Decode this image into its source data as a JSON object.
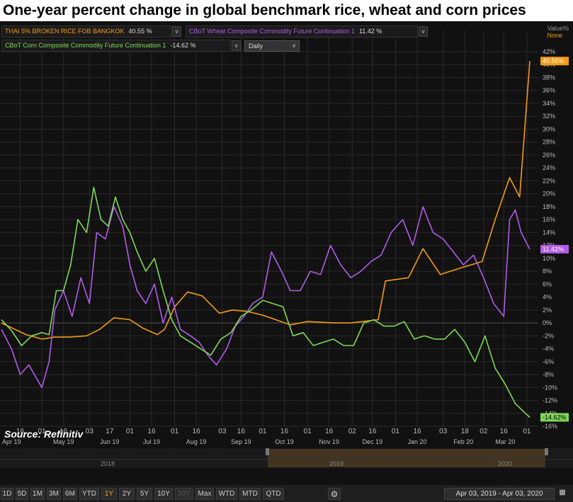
{
  "title": "One-year percent change in global benchmark rice, wheat and corn prices",
  "source": "Source: Refinitiv",
  "legend": {
    "rice": {
      "label": "THAI 5% BROKEN RICE FOB BANGKOK",
      "value": "40.55 %"
    },
    "wheat": {
      "label": "CBoT Wheat Composite Commodity Future Continuation 1",
      "value": "11.42 %"
    },
    "corn": {
      "label": "CBoT Corn Composite Commodity Future Continuation 1",
      "value": "-14.62 %"
    },
    "dropdown_glyph": "∨",
    "interval": "Daily"
  },
  "value_axis": {
    "label": "Value%",
    "mode": "None"
  },
  "colors": {
    "rice": "#f39c12",
    "wheat": "#b25ce6",
    "corn": "#7ed957",
    "grid": "#2a2a2a",
    "zero": "#555555"
  },
  "range_buttons": [
    "1D",
    "5D",
    "1M",
    "3M",
    "6M",
    "YTD",
    "1Y",
    "2Y",
    "5Y",
    "10Y",
    "20Y",
    "Max",
    "WTD",
    "MTD",
    "QTD"
  ],
  "active_range": "1Y",
  "disabled_range": "20Y",
  "date_range": "Apr 03, 2019  -  Apr 03, 2020",
  "icons": {
    "settings": "gear-icon",
    "calendar": "calendar-icon"
  },
  "chart_data": {
    "type": "line",
    "title": "One-year percent change in global benchmark rice, wheat and corn prices",
    "ylabel": "Value%",
    "ylim": [
      -16,
      42
    ],
    "y_ticks": [
      "42%",
      "40%",
      "38%",
      "36%",
      "34%",
      "32%",
      "30%",
      "28%",
      "26%",
      "24%",
      "22%",
      "20%",
      "18%",
      "16%",
      "14%",
      "12%",
      "10%",
      "8%",
      "6%",
      "4%",
      "2%",
      "0%",
      "-2%",
      "-4%",
      "-6%",
      "-8%",
      "-10%",
      "-12%",
      "-14%",
      "-16%"
    ],
    "x_day_ticks": [
      "16",
      "01",
      "16",
      "03",
      "17",
      "01",
      "16",
      "01",
      "16",
      "03",
      "16",
      "01",
      "16",
      "01",
      "16",
      "02",
      "16",
      "01",
      "16",
      "03",
      "18",
      "02",
      "16",
      "01"
    ],
    "x_month_ticks": [
      "Apr 19",
      "May 19",
      "Jun 19",
      "Jul 19",
      "Aug 19",
      "Sep 19",
      "Oct 19",
      "Nov 19",
      "Dec 19",
      "Jan 20",
      "Feb 20",
      "Mar 20"
    ],
    "year_ticks": [
      "2018",
      "2019",
      "2020"
    ],
    "grid": true,
    "legend_position": "top-left",
    "series": [
      {
        "name": "THAI 5% BROKEN RICE FOB BANGKOK",
        "color": "#f39c12",
        "last_label": "40.55%",
        "x": [
          "2019-04-03",
          "2019-04-20",
          "2019-05-01",
          "2019-05-10",
          "2019-05-20",
          "2019-06-01",
          "2019-06-10",
          "2019-06-20",
          "2019-07-01",
          "2019-07-10",
          "2019-07-20",
          "2019-07-25",
          "2019-08-01",
          "2019-08-10",
          "2019-08-20",
          "2019-09-01",
          "2019-09-10",
          "2019-09-20",
          "2019-10-01",
          "2019-10-10",
          "2019-10-20",
          "2019-11-01",
          "2019-11-20",
          "2019-12-01",
          "2019-12-20",
          "2019-12-25",
          "2020-01-10",
          "2020-01-20",
          "2020-02-01",
          "2020-02-15",
          "2020-03-01",
          "2020-03-10",
          "2020-03-20",
          "2020-03-27",
          "2020-04-03"
        ],
        "y": [
          0,
          -1.8,
          -2.5,
          -2.2,
          -2.2,
          -2,
          -1,
          0.8,
          0.5,
          -0.8,
          -1.8,
          -1,
          2.5,
          4.8,
          4.2,
          1.5,
          2,
          1.8,
          1.2,
          0.5,
          -0.3,
          0.2,
          0,
          0,
          0.5,
          6.5,
          7,
          11.5,
          7.5,
          8.5,
          9.5,
          16,
          22.5,
          19.5,
          40.55
        ]
      },
      {
        "name": "CBoT Wheat Composite Commodity Future Continuation 1",
        "color": "#b25ce6",
        "last_label": "11.42%",
        "x": [
          "2019-04-03",
          "2019-04-10",
          "2019-04-16",
          "2019-04-22",
          "2019-05-01",
          "2019-05-06",
          "2019-05-10",
          "2019-05-16",
          "2019-05-22",
          "2019-05-28",
          "2019-06-03",
          "2019-06-08",
          "2019-06-14",
          "2019-06-20",
          "2019-06-26",
          "2019-07-01",
          "2019-07-06",
          "2019-07-12",
          "2019-07-18",
          "2019-07-24",
          "2019-07-30",
          "2019-08-05",
          "2019-08-12",
          "2019-08-18",
          "2019-08-24",
          "2019-08-30",
          "2019-09-06",
          "2019-09-12",
          "2019-09-18",
          "2019-09-24",
          "2019-10-01",
          "2019-10-07",
          "2019-10-14",
          "2019-10-20",
          "2019-10-27",
          "2019-11-03",
          "2019-11-10",
          "2019-11-17",
          "2019-11-24",
          "2019-12-01",
          "2019-12-08",
          "2019-12-15",
          "2019-12-22",
          "2019-12-29",
          "2020-01-06",
          "2020-01-13",
          "2020-01-20",
          "2020-01-27",
          "2020-02-03",
          "2020-02-10",
          "2020-02-17",
          "2020-02-24",
          "2020-03-02",
          "2020-03-09",
          "2020-03-16",
          "2020-03-20",
          "2020-03-24",
          "2020-03-28",
          "2020-04-03"
        ],
        "y": [
          -1,
          -4,
          -8,
          -6.5,
          -10,
          -6,
          2,
          5,
          1,
          7,
          3,
          14,
          13,
          18,
          15,
          9,
          5,
          3,
          6,
          0,
          4,
          -1,
          -2,
          -3,
          -5,
          -6.5,
          -4,
          -0.5,
          1,
          3,
          4,
          11,
          8,
          5,
          5,
          8,
          7.5,
          12,
          9,
          7,
          8,
          9.5,
          10.5,
          14,
          16,
          12,
          18,
          14,
          13,
          11,
          9,
          10.5,
          7,
          3,
          1,
          16,
          17.5,
          14,
          11.42
        ]
      },
      {
        "name": "CBoT Corn Composite Commodity Future Continuation 1",
        "color": "#7ed957",
        "last_label": "-14.62%",
        "x": [
          "2019-04-03",
          "2019-04-10",
          "2019-04-17",
          "2019-04-24",
          "2019-05-01",
          "2019-05-06",
          "2019-05-11",
          "2019-05-16",
          "2019-05-21",
          "2019-05-26",
          "2019-06-01",
          "2019-06-06",
          "2019-06-11",
          "2019-06-16",
          "2019-06-21",
          "2019-06-26",
          "2019-07-01",
          "2019-07-06",
          "2019-07-12",
          "2019-07-18",
          "2019-07-24",
          "2019-07-30",
          "2019-08-05",
          "2019-08-12",
          "2019-08-19",
          "2019-08-26",
          "2019-09-02",
          "2019-09-09",
          "2019-09-16",
          "2019-09-23",
          "2019-10-01",
          "2019-10-08",
          "2019-10-15",
          "2019-10-22",
          "2019-10-29",
          "2019-11-05",
          "2019-11-12",
          "2019-11-19",
          "2019-11-26",
          "2019-12-03",
          "2019-12-10",
          "2019-12-17",
          "2019-12-24",
          "2019-12-31",
          "2020-01-07",
          "2020-01-14",
          "2020-01-21",
          "2020-01-28",
          "2020-02-04",
          "2020-02-11",
          "2020-02-18",
          "2020-02-25",
          "2020-03-03",
          "2020-03-10",
          "2020-03-17",
          "2020-03-24",
          "2020-03-31",
          "2020-04-03"
        ],
        "y": [
          0.5,
          -1.2,
          -3.5,
          -2,
          -1.5,
          -1.8,
          5,
          5,
          9,
          16,
          14,
          21,
          16,
          15,
          19.5,
          16,
          14,
          11,
          8,
          10,
          5,
          0.5,
          -2,
          -3,
          -4,
          -5,
          -2.5,
          -1.5,
          1,
          2,
          3.5,
          3,
          2.5,
          -2,
          -1.5,
          -3.5,
          -3,
          -2.5,
          -3.5,
          -3.5,
          0,
          0.5,
          -0.5,
          -0.5,
          0.2,
          -2.5,
          -2,
          -2.5,
          -2.5,
          -1,
          -3,
          -6,
          -2,
          -7,
          -9.5,
          -12.5,
          -14,
          -14.62
        ]
      }
    ]
  }
}
